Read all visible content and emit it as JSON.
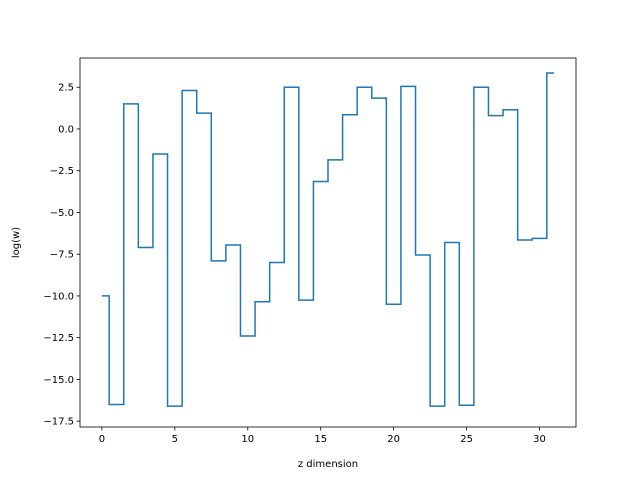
{
  "chart_data": {
    "type": "line",
    "style": "step-mid",
    "title": "",
    "xlabel": "z dimension",
    "ylabel": "log(w)",
    "xlim": [
      -1.5,
      32.5
    ],
    "ylim": [
      -17.85,
      4.25
    ],
    "grid": false,
    "xticks": [
      0,
      5,
      10,
      15,
      20,
      25,
      30
    ],
    "xtick_labels": [
      "0",
      "5",
      "10",
      "15",
      "20",
      "25",
      "30"
    ],
    "yticks": [
      2.5,
      0.0,
      -2.5,
      -5.0,
      -7.5,
      -10.0,
      -12.5,
      -15.0,
      -17.5
    ],
    "ytick_labels": [
      "2.5",
      "0.0",
      "−2.5",
      "−5.0",
      "−7.5",
      "−10.0",
      "−12.5",
      "−15.0",
      "−17.5"
    ],
    "x": [
      0,
      1,
      2,
      3,
      4,
      5,
      6,
      7,
      8,
      9,
      10,
      11,
      12,
      13,
      14,
      15,
      16,
      17,
      18,
      19,
      20,
      21,
      22,
      23,
      24,
      25,
      26,
      27,
      28,
      29,
      30,
      31
    ],
    "series": [
      {
        "color": "#1f77b4",
        "values": [
          -10.0,
          -16.5,
          1.5,
          -7.1,
          -1.5,
          -16.6,
          2.3,
          0.95,
          -7.9,
          -6.95,
          -12.4,
          -10.35,
          -8.0,
          2.5,
          -10.25,
          -3.15,
          -1.85,
          0.85,
          2.5,
          1.85,
          -10.5,
          2.55,
          -7.55,
          -16.6,
          -6.8,
          -16.55,
          2.5,
          0.8,
          1.15,
          -6.65,
          -6.55,
          3.35
        ]
      }
    ]
  }
}
